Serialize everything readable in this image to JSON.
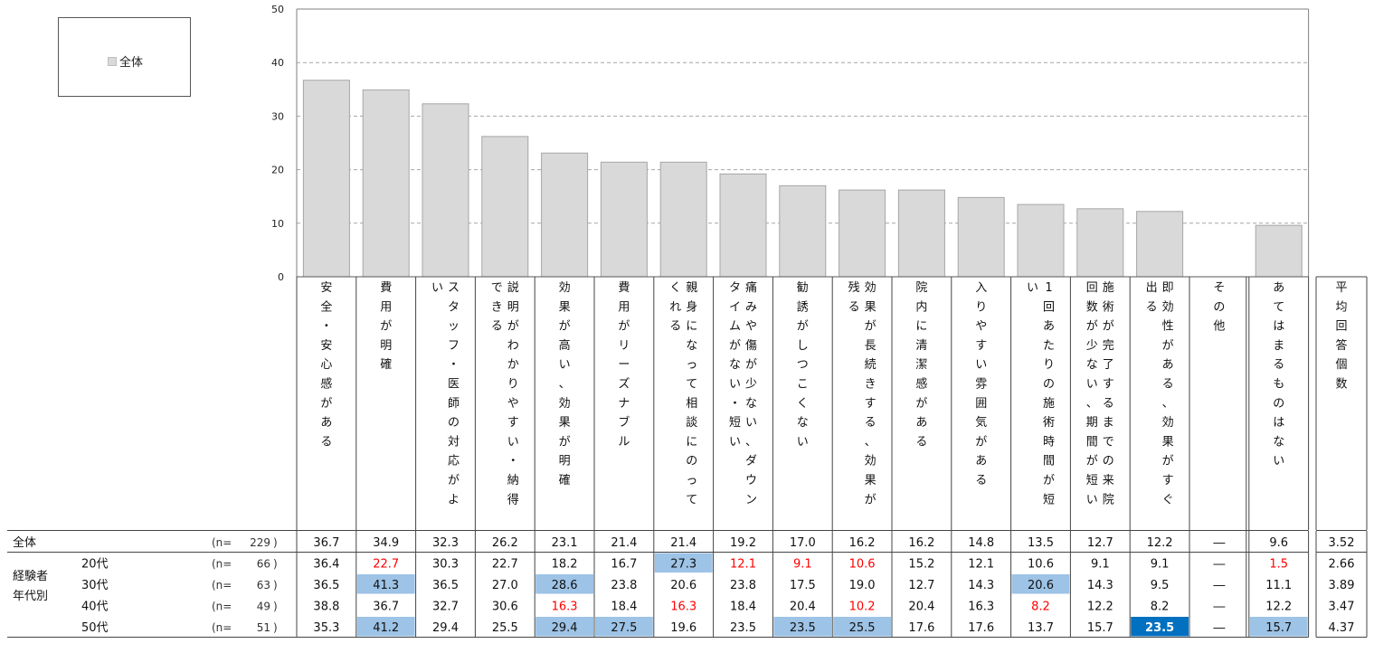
{
  "legend": {
    "label": "全体",
    "swatch_color": "#d9d9d9"
  },
  "chart_data": {
    "type": "bar",
    "ylim": [
      0,
      50
    ],
    "yticks": [
      0,
      10,
      20,
      30,
      40,
      50
    ],
    "grid": true,
    "legend_position": "top-left",
    "categories": [
      "安全・安心感がある",
      "費用が明確",
      "スタッフ・医師の対応がよい",
      "説明がわかりやすい・納得できる",
      "効果が高い、効果が明確",
      "費用がリーズナブル",
      "親身になって相談にのってくれる",
      "痛みや傷が少ない、ダウンタイムがない・短い",
      "勧誘がしつこくない",
      "効果が長続きする、効果が残る",
      "院内に清潔感がある",
      "入りやすい雰囲気がある",
      "1回あたりの施術時間が短い",
      "施術が完了するまでの来院回数が少ない、期間が短い",
      "即効性がある、効果がすぐ出る",
      "その他",
      "あてはまるものはない"
    ],
    "category_columns": [
      [
        "安全・安心感がある"
      ],
      [
        "費用が明確"
      ],
      [
        "スタッフ・医師の対応がよ",
        "い"
      ],
      [
        "説明がわかりやすい・納得",
        "できる"
      ],
      [
        "効果が高い、効果が明確"
      ],
      [
        "費用がリーズナブル"
      ],
      [
        "親身になって相談にのって",
        "くれる"
      ],
      [
        "痛みや傷が少ない、ダウン",
        "タイムがない・短い"
      ],
      [
        "勧誘がしつこくない"
      ],
      [
        "効果が長続きする、効果が",
        "残る"
      ],
      [
        "院内に清潔感がある"
      ],
      [
        "入りやすい雰囲気がある"
      ],
      [
        "1回あたりの施術時間が短",
        "い"
      ],
      [
        "施術が完了するまでの来院",
        "回数が少ない、期間が短い"
      ],
      [
        "即効性がある、効果がすぐ",
        "出る"
      ],
      [
        "その他"
      ],
      [
        "あてはまるものはない"
      ]
    ],
    "series": [
      {
        "name": "全体",
        "values": [
          36.7,
          34.9,
          32.3,
          26.2,
          23.1,
          21.4,
          21.4,
          19.2,
          17.0,
          16.2,
          16.2,
          14.8,
          13.5,
          12.7,
          12.2,
          null,
          9.6
        ]
      }
    ],
    "avg_header": "平均回答個数",
    "group_label": [
      "経験者",
      "年代別"
    ],
    "table": {
      "rows": [
        {
          "label": "全体",
          "n": "229",
          "indent": false,
          "values": [
            "36.7",
            "34.9",
            "32.3",
            "26.2",
            "23.1",
            "21.4",
            "21.4",
            "19.2",
            "17.0",
            "16.2",
            "16.2",
            "14.8",
            "13.5",
            "12.7",
            "12.2",
            "―",
            "9.6"
          ],
          "avg": "3.52",
          "styles": [
            "",
            "",
            "",
            "",
            "",
            "",
            "",
            "",
            "",
            "",
            "",
            "",
            "",
            "",
            "",
            "",
            ""
          ]
        },
        {
          "label": "20代",
          "n": "66",
          "indent": true,
          "values": [
            "36.4",
            "22.7",
            "30.3",
            "22.7",
            "18.2",
            "16.7",
            "27.3",
            "12.1",
            "9.1",
            "10.6",
            "15.2",
            "12.1",
            "10.6",
            "9.1",
            "9.1",
            "―",
            "1.5"
          ],
          "avg": "2.66",
          "styles": [
            "",
            "red",
            "",
            "",
            "",
            "",
            "light",
            "red",
            "red",
            "red",
            "",
            "",
            "",
            "",
            "",
            "",
            "red"
          ]
        },
        {
          "label": "30代",
          "n": "63",
          "indent": true,
          "values": [
            "36.5",
            "41.3",
            "36.5",
            "27.0",
            "28.6",
            "23.8",
            "20.6",
            "23.8",
            "17.5",
            "19.0",
            "12.7",
            "14.3",
            "20.6",
            "14.3",
            "9.5",
            "―",
            "11.1"
          ],
          "avg": "3.89",
          "styles": [
            "",
            "light",
            "",
            "",
            "light",
            "",
            "",
            "",
            "",
            "",
            "",
            "",
            "light",
            "",
            "",
            "",
            ""
          ]
        },
        {
          "label": "40代",
          "n": "49",
          "indent": true,
          "values": [
            "38.8",
            "36.7",
            "32.7",
            "30.6",
            "16.3",
            "18.4",
            "16.3",
            "18.4",
            "20.4",
            "10.2",
            "20.4",
            "16.3",
            "8.2",
            "12.2",
            "8.2",
            "―",
            "12.2"
          ],
          "avg": "3.47",
          "styles": [
            "",
            "",
            "",
            "",
            "red",
            "",
            "red",
            "",
            "",
            "red",
            "",
            "",
            "red",
            "",
            "",
            "",
            ""
          ]
        },
        {
          "label": "50代",
          "n": "51",
          "indent": true,
          "values": [
            "35.3",
            "41.2",
            "29.4",
            "25.5",
            "29.4",
            "27.5",
            "19.6",
            "23.5",
            "23.5",
            "25.5",
            "17.6",
            "17.6",
            "13.7",
            "15.7",
            "23.5",
            "―",
            "15.7"
          ],
          "avg": "4.37",
          "styles": [
            "",
            "light",
            "",
            "",
            "light",
            "light",
            "",
            "",
            "light",
            "light",
            "",
            "",
            "",
            "",
            "dark",
            "",
            "light"
          ]
        }
      ],
      "n_prefix": "(n=",
      "n_suffix": ")"
    },
    "colors": {
      "bar_fill": "#d9d9d9",
      "bar_stroke": "#a6a6a6",
      "highlight_light": "#9dc3e6",
      "highlight_dark": "#0070c0",
      "low_text": "#ff0000"
    }
  }
}
